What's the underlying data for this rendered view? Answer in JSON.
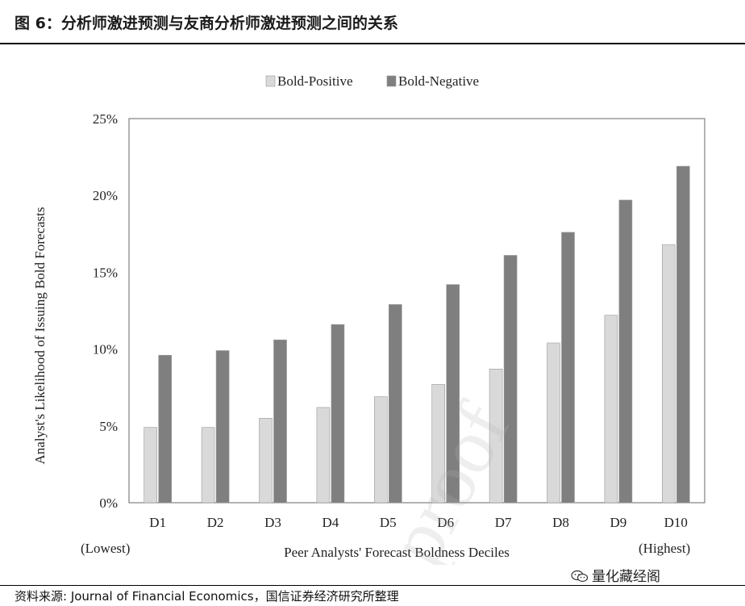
{
  "figure": {
    "title": "图 6：分析师激进预测与友商分析师激进预测之间的关系",
    "source": "资料来源: Journal of Financial Economics，国信证券经济研究所整理",
    "watermark_text": "量化藏经阁",
    "overlay_text": "proof"
  },
  "chart_data": {
    "type": "bar",
    "categories": [
      "D1",
      "D2",
      "D3",
      "D4",
      "D5",
      "D6",
      "D7",
      "D8",
      "D9",
      "D10"
    ],
    "series": [
      {
        "name": "Bold-Positive",
        "color": "#d9d9d9",
        "values": [
          4.9,
          4.9,
          5.5,
          6.2,
          6.9,
          7.7,
          8.7,
          10.4,
          12.2,
          16.8
        ]
      },
      {
        "name": "Bold-Negative",
        "color": "#7f7f7f",
        "values": [
          9.6,
          9.9,
          10.6,
          11.6,
          12.9,
          14.2,
          16.1,
          17.6,
          19.7,
          21.9
        ]
      }
    ],
    "ylim": [
      0,
      25
    ],
    "yticks": [
      0,
      5,
      10,
      15,
      20,
      25
    ],
    "ytick_labels": [
      "0%",
      "5%",
      "10%",
      "15%",
      "20%",
      "25%"
    ],
    "ylabel": "Analyst's Likelihood of Issuing Bold Forecasts",
    "xlabel": "Peer Analysts' Forecast Boldness Deciles",
    "x_annotations": {
      "left": "(Lowest)",
      "right": "(Highest)"
    },
    "legend_position": "top-center",
    "grid": false
  }
}
